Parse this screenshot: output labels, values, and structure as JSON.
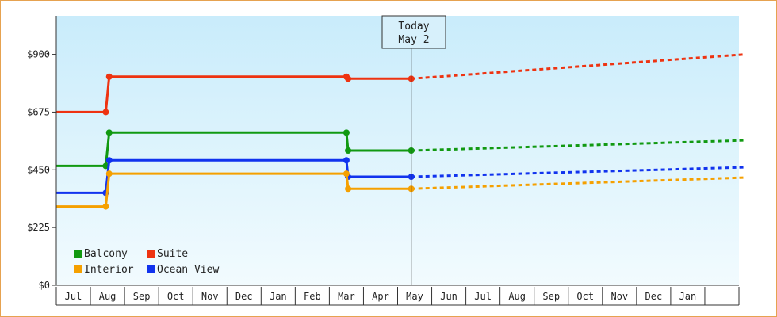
{
  "chart_data": {
    "type": "line",
    "today_marker": {
      "line1": "Today",
      "line2": "May 2"
    },
    "y_axis": {
      "ticks": [
        {
          "value": 0,
          "label": "$0"
        },
        {
          "value": 225,
          "label": "$225"
        },
        {
          "value": 450,
          "label": "$450"
        },
        {
          "value": 675,
          "label": "$675"
        },
        {
          "value": 900,
          "label": "$900"
        }
      ],
      "ylim": [
        0,
        1050
      ]
    },
    "x_axis": {
      "months": [
        "Jul",
        "Aug",
        "Sep",
        "Oct",
        "Nov",
        "Dec",
        "Jan",
        "Feb",
        "Mar",
        "Apr",
        "May",
        "Jun",
        "Jul",
        "Aug",
        "Sep",
        "Oct",
        "Nov",
        "Dec",
        "Jan"
      ],
      "range_months": [
        -1.5,
        18.5
      ]
    },
    "legend": {
      "placement": "bottom-left",
      "items": [
        {
          "name": "Balcony",
          "color": "#119911"
        },
        {
          "name": "Suite",
          "color": "#ee3311"
        },
        {
          "name": "Interior",
          "color": "#f5a000"
        },
        {
          "name": "Ocean View",
          "color": "#1133ee"
        }
      ]
    },
    "series": [
      {
        "name": "Suite",
        "color": "#ee3311",
        "points": [
          [
            -1.5,
            675
          ],
          [
            -0.05,
            675
          ],
          [
            0.05,
            813
          ],
          [
            7.0,
            813
          ],
          [
            7.05,
            805
          ],
          [
            8.9,
            805
          ]
        ],
        "markers": [
          [
            -0.05,
            675
          ],
          [
            0.05,
            813
          ],
          [
            7.0,
            813
          ],
          [
            7.05,
            805
          ],
          [
            8.9,
            805
          ]
        ],
        "forecast": [
          [
            8.9,
            805
          ],
          [
            18.7,
            900
          ]
        ]
      },
      {
        "name": "Balcony",
        "color": "#119911",
        "points": [
          [
            -1.5,
            465
          ],
          [
            -0.05,
            465
          ],
          [
            0.05,
            595
          ],
          [
            7.0,
            595
          ],
          [
            7.05,
            525
          ],
          [
            8.9,
            525
          ]
        ],
        "markers": [
          [
            -0.05,
            465
          ],
          [
            0.05,
            595
          ],
          [
            7.0,
            595
          ],
          [
            7.05,
            525
          ],
          [
            8.9,
            525
          ]
        ],
        "forecast": [
          [
            8.9,
            525
          ],
          [
            18.7,
            565
          ]
        ]
      },
      {
        "name": "Ocean View",
        "color": "#1133ee",
        "points": [
          [
            -1.5,
            360
          ],
          [
            -0.05,
            360
          ],
          [
            0.05,
            487
          ],
          [
            7.0,
            487
          ],
          [
            7.05,
            423
          ],
          [
            8.9,
            423
          ]
        ],
        "markers": [
          [
            -0.05,
            360
          ],
          [
            0.05,
            487
          ],
          [
            7.0,
            487
          ],
          [
            7.05,
            423
          ],
          [
            8.9,
            423
          ]
        ],
        "forecast": [
          [
            8.9,
            423
          ],
          [
            18.7,
            460
          ]
        ]
      },
      {
        "name": "Interior",
        "color": "#f5a000",
        "points": [
          [
            -1.5,
            307
          ],
          [
            -0.05,
            307
          ],
          [
            0.05,
            435
          ],
          [
            7.0,
            435
          ],
          [
            7.05,
            376
          ],
          [
            8.9,
            376
          ]
        ],
        "markers": [
          [
            -0.05,
            307
          ],
          [
            0.05,
            435
          ],
          [
            7.0,
            435
          ],
          [
            7.05,
            376
          ],
          [
            8.9,
            376
          ]
        ],
        "forecast": [
          [
            8.9,
            376
          ],
          [
            18.7,
            420
          ]
        ]
      }
    ]
  }
}
